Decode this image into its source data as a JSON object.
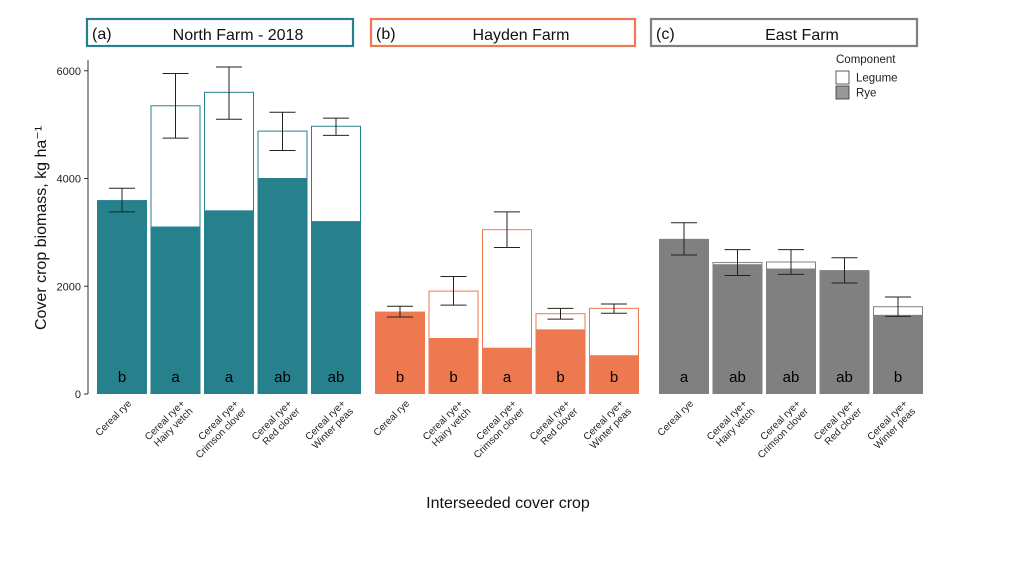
{
  "chart_data": {
    "type": "bar",
    "stacked": true,
    "ylabel": "Cover crop biomass, kg ha⁻¹",
    "xlabel": "Interseeded cover crop",
    "ylim": [
      0,
      6200
    ],
    "yticks": [
      0,
      2000,
      4000,
      6000
    ],
    "categories": [
      [
        "Cereal rye"
      ],
      [
        "Cereal rye+",
        "Hairy vetch"
      ],
      [
        "Cereal rye+",
        "Crimson clover"
      ],
      [
        "Cereal rye+",
        "Red clover"
      ],
      [
        "Cereal rye+",
        "Winter peas"
      ]
    ],
    "legend": {
      "title": "Component",
      "position": "top-right",
      "items": [
        {
          "name": "Legume",
          "color": "#ffffff"
        },
        {
          "name": "Rye",
          "color": "#999999"
        }
      ]
    },
    "panels": [
      {
        "tag": "(a)",
        "title": "North Farm - 2018",
        "color": "#26818c",
        "rye": [
          3600,
          3100,
          3400,
          4000,
          3200
        ],
        "total": [
          3600,
          5350,
          5600,
          4880,
          4970
        ],
        "err_low": [
          3380,
          4750,
          5100,
          4520,
          4800
        ],
        "err_high": [
          3820,
          5950,
          6070,
          5230,
          5120
        ],
        "letters": [
          "b",
          "a",
          "a",
          "ab",
          "ab"
        ]
      },
      {
        "tag": "(b)",
        "title": "Hayden Farm",
        "color": "#ee7850",
        "rye": [
          1530,
          1030,
          850,
          1190,
          710
        ],
        "total": [
          1530,
          1910,
          3050,
          1490,
          1590
        ],
        "err_low": [
          1430,
          1650,
          2720,
          1390,
          1500
        ],
        "err_high": [
          1630,
          2180,
          3380,
          1590,
          1670
        ],
        "letters": [
          "b",
          "b",
          "a",
          "b",
          "b"
        ]
      },
      {
        "tag": "(c)",
        "title": "East Farm",
        "color": "#808080",
        "rye": [
          2880,
          2400,
          2320,
          2300,
          1460
        ],
        "total": [
          2880,
          2440,
          2450,
          2300,
          1620
        ],
        "err_low": [
          2580,
          2200,
          2220,
          2060,
          1440
        ],
        "err_high": [
          3180,
          2680,
          2680,
          2530,
          1800
        ],
        "letters": [
          "a",
          "ab",
          "ab",
          "ab",
          "b"
        ]
      }
    ]
  }
}
